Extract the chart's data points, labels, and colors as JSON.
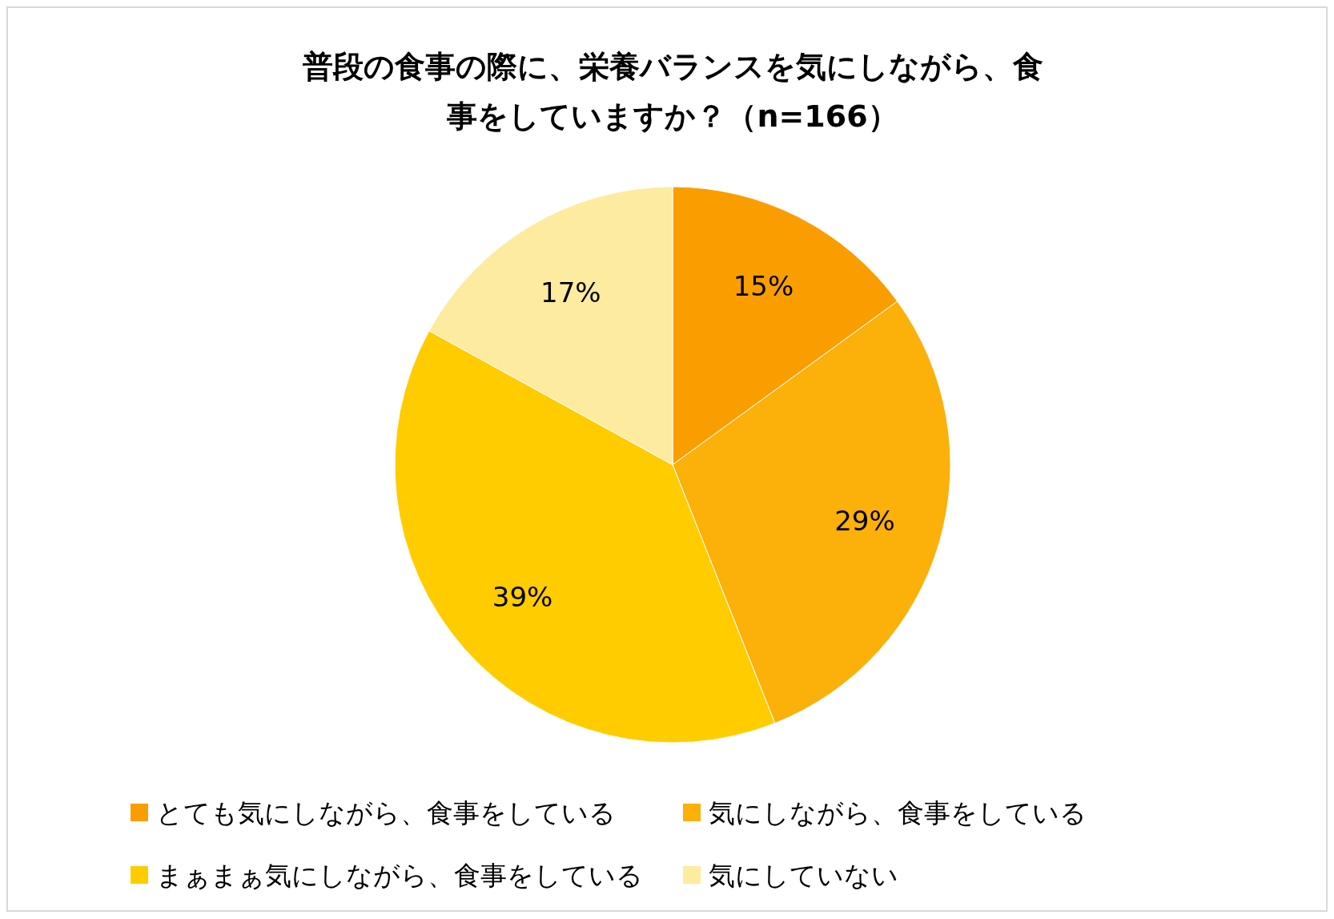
{
  "chart_data": {
    "type": "pie",
    "title": "普段の食事の際に、栄養バランスを気にしながら、食事をしていますか？（n=166）",
    "categories": [
      "とても気にしながら、食事をしている",
      "気にしながら、食事をしている",
      "まぁまぁ気にしながら、食事をしている",
      "気にしていない"
    ],
    "values": [
      15,
      29,
      39,
      17
    ],
    "colors": [
      "#fa9e00",
      "#fbb00a",
      "#ffcc00",
      "#fdeba0"
    ],
    "value_labels": [
      "15%",
      "29%",
      "39%",
      "17%"
    ],
    "legend": "bottom"
  }
}
